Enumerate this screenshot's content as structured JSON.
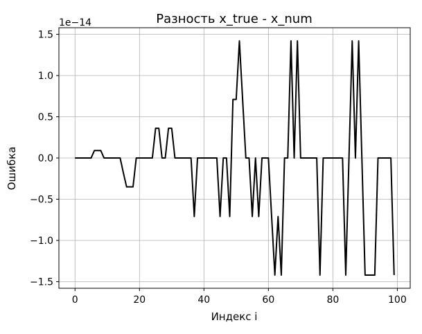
{
  "chart_data": {
    "type": "line",
    "title": "Разность x_true - x_num",
    "xlabel": "Индекс i",
    "ylabel": "Ошибка",
    "offset_text": "1e−14",
    "grid": true,
    "color": "#000000",
    "xlim": [
      -5,
      104
    ],
    "ylim": [
      -1.58,
      1.58
    ],
    "xticks": [
      0,
      20,
      40,
      60,
      80,
      100
    ],
    "xtick_labels": [
      "0",
      "20",
      "40",
      "60",
      "80",
      "100"
    ],
    "yticks": [
      -1.5,
      -1.0,
      -0.5,
      0.0,
      0.5,
      1.0,
      1.5
    ],
    "ytick_labels": [
      "−1.5",
      "−1.0",
      "−0.5",
      "0.0",
      "0.5",
      "1.0",
      "1.5"
    ],
    "x": [
      0,
      1,
      2,
      3,
      4,
      5,
      6,
      7,
      8,
      9,
      10,
      11,
      12,
      13,
      14,
      15,
      16,
      17,
      18,
      19,
      20,
      21,
      22,
      23,
      24,
      25,
      26,
      27,
      28,
      29,
      30,
      31,
      32,
      33,
      34,
      35,
      36,
      37,
      38,
      39,
      40,
      41,
      42,
      43,
      44,
      45,
      46,
      47,
      48,
      49,
      50,
      51,
      52,
      53,
      54,
      55,
      56,
      57,
      58,
      59,
      60,
      61,
      62,
      63,
      64,
      65,
      66,
      67,
      68,
      69,
      70,
      71,
      72,
      73,
      74,
      75,
      76,
      77,
      78,
      79,
      80,
      81,
      82,
      83,
      84,
      85,
      86,
      87,
      88,
      89,
      90,
      91,
      92,
      93,
      94,
      95,
      96,
      97,
      98,
      99
    ],
    "y": [
      0,
      0,
      0,
      0,
      0,
      0,
      0.09,
      0.09,
      0.09,
      0,
      0,
      0,
      0,
      0,
      0,
      -0.18,
      -0.35,
      -0.35,
      -0.35,
      0,
      0,
      0,
      0,
      0,
      0,
      0.36,
      0.36,
      0,
      0,
      0.36,
      0.36,
      0,
      0,
      0,
      0,
      0,
      0,
      -0.71,
      0,
      0,
      0,
      0,
      0,
      0,
      0,
      -0.71,
      0,
      0,
      -0.71,
      0.71,
      0.71,
      1.42,
      0.71,
      0,
      0,
      -0.71,
      0,
      -0.71,
      0,
      0,
      0,
      -0.71,
      -1.42,
      -0.71,
      -1.42,
      0,
      0,
      1.42,
      0,
      1.42,
      0,
      0,
      0,
      0,
      0,
      0,
      -1.42,
      0,
      0,
      0,
      0,
      0,
      0,
      0,
      -1.42,
      0,
      1.42,
      0,
      1.42,
      0,
      -1.42,
      -1.42,
      -1.42,
      -1.42,
      0,
      0,
      0,
      0,
      0,
      -1.42
    ]
  }
}
